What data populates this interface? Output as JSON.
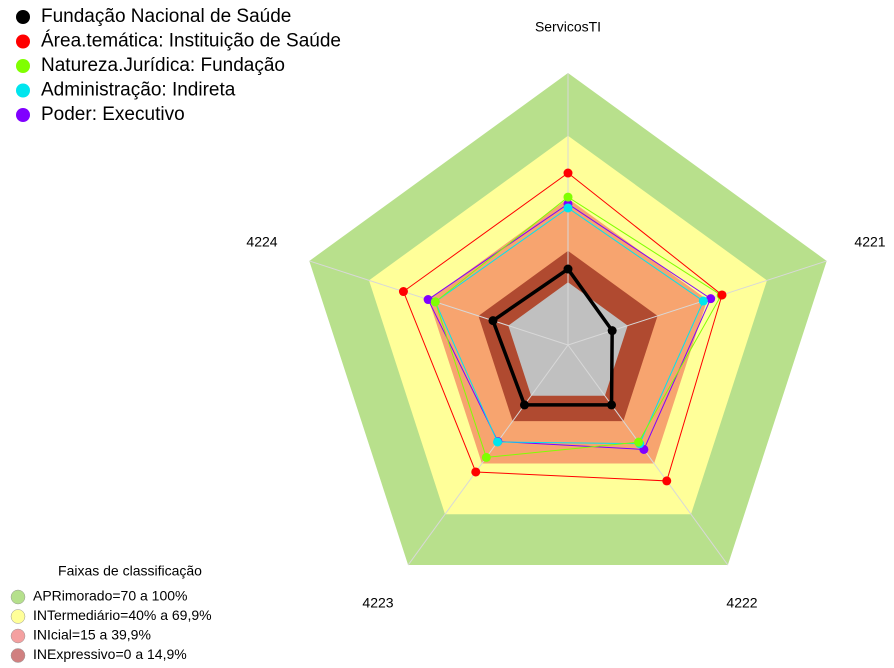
{
  "chart_data": {
    "type": "radar",
    "axes": [
      "ServicosTI",
      "4221",
      "4222",
      "4223",
      "4224"
    ],
    "rlim": [
      -30,
      100
    ],
    "legend": "top-left",
    "series": [
      {
        "name": "Fundação Nacional de Saúde",
        "color": "#000000",
        "values": [
          6.3,
          -7.8,
          5.4,
          5.4,
          7.7
        ]
      },
      {
        "name": "Área.temática: Instituição de Saúde",
        "color": "#ff0000",
        "values": [
          52.2,
          47.4,
          50.3,
          45,
          52.7
        ]
      },
      {
        "name": "Natureza.Jurídica: Fundação",
        "color": "#80ff00",
        "values": [
          40.7,
          47,
          27.4,
          36.4,
          36.7
        ]
      },
      {
        "name": "Administração: Indireta",
        "color": "#00e5ee",
        "values": [
          35.5,
          38,
          28.3,
          27.3,
          36.7
        ]
      },
      {
        "name": "Poder: Executivo",
        "color": "#8000ff",
        "values": [
          37.4,
          41.7,
          31.7,
          27,
          40.3
        ]
      }
    ],
    "bands": {
      "title": "Faixas de classificação",
      "items": [
        {
          "label": "APRimorado=70 a 100%",
          "range": [
            70,
            100
          ],
          "color": "#b8e08c",
          "legend_color": "#b5e08c"
        },
        {
          "label": "INTermediário=40% a 69,9%",
          "range": [
            40,
            70
          ],
          "color": "#ffff99",
          "legend_color": "#ffff99"
        },
        {
          "label": "INIcial=15 a 39,9%",
          "range": [
            15,
            40
          ],
          "color": "#f7a46f",
          "legend_color": "#f4a0a0"
        },
        {
          "label": "INExpressivo=0 a 14,9%",
          "range": [
            0,
            15
          ],
          "color": "#b04a30",
          "legend_color": "#d08080"
        }
      ]
    }
  }
}
